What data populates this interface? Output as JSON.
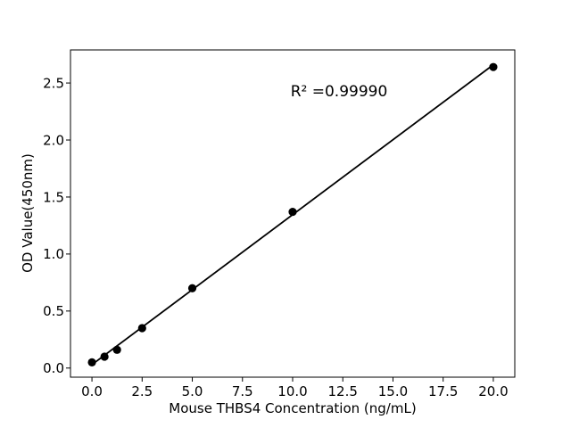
{
  "figure": {
    "background": "#ffffff"
  },
  "chart_data": {
    "type": "scatter",
    "title": "",
    "xlabel": "Mouse THBS4 Concentration (ng/mL)",
    "ylabel": "OD Value(450nm)",
    "annotation": "R² =0.99990",
    "x": [
      0,
      0.625,
      1.25,
      2.5,
      5,
      10,
      20
    ],
    "y": [
      0.05,
      0.1,
      0.16,
      0.35,
      0.7,
      1.37,
      2.64
    ],
    "trendline": {
      "x": [
        0,
        20
      ],
      "y": [
        0.03,
        2.66
      ]
    },
    "xlim": [
      -1.07,
      21.07
    ],
    "ylim": [
      -0.08,
      2.79
    ],
    "x_ticks": {
      "values": [
        0,
        2.5,
        5,
        7.5,
        10,
        12.5,
        15,
        17.5,
        20
      ],
      "labels": [
        "0.0",
        "2.5",
        "5.0",
        "7.5",
        "10.0",
        "12.5",
        "15.0",
        "17.5",
        "20.0"
      ]
    },
    "y_ticks": {
      "values": [
        0,
        0.5,
        1.0,
        1.5,
        2.0,
        2.5
      ],
      "labels": [
        "0.0",
        "0.5",
        "1.0",
        "1.5",
        "2.0",
        "2.5"
      ]
    },
    "grid": false,
    "legend": "none",
    "colors": {
      "marker": "#000000",
      "line": "#000000",
      "axis": "#000000",
      "text": "#000000",
      "background": "#ffffff"
    }
  }
}
